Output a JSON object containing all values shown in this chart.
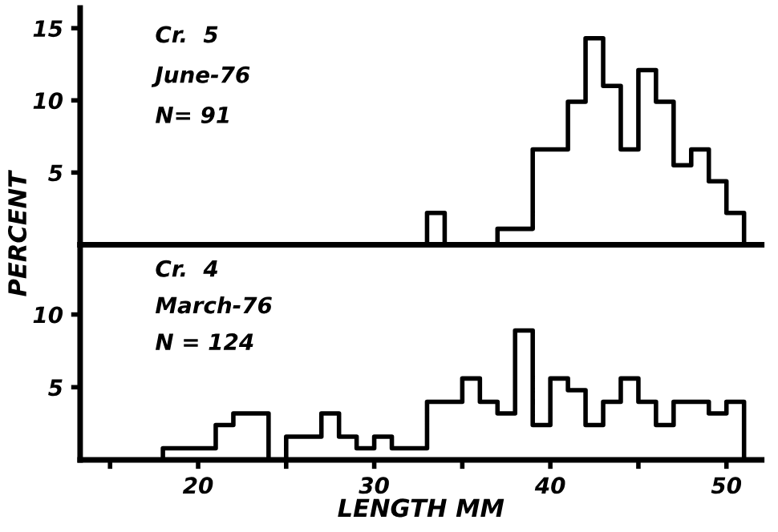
{
  "chart_data": [
    {
      "type": "histogram",
      "ylabel": "PERCENT",
      "annotations": [
        "Cr.  5",
        "June-76",
        "N= 91"
      ],
      "color": "#000000",
      "bins": [
        33,
        34,
        35,
        36,
        37,
        38,
        39,
        40,
        41,
        42,
        43,
        44,
        45,
        46,
        47,
        48,
        49,
        50,
        51
      ],
      "values": [
        2.2,
        0,
        0,
        0,
        1.1,
        1.1,
        6.6,
        6.6,
        9.9,
        14.3,
        11,
        6.6,
        12.1,
        9.9,
        5.5,
        6.6,
        4.4,
        2.2
      ],
      "xlim": [
        13.3,
        52
      ],
      "ylim": [
        0,
        16.4
      ],
      "yticks": [
        5,
        10,
        15
      ],
      "tick_labels": "y",
      "grid": false,
      "legend": false
    },
    {
      "type": "histogram",
      "xlabel": "LENGTH MM",
      "annotations": [
        "Cr.  4",
        "March-76",
        "N = 124"
      ],
      "color": "#000000",
      "bins": [
        18,
        19,
        20,
        21,
        22,
        23,
        24,
        25,
        26,
        27,
        28,
        29,
        30,
        31,
        32,
        33,
        34,
        35,
        36,
        37,
        38,
        39,
        40,
        41,
        42,
        43,
        44,
        45,
        46,
        47,
        48,
        49,
        50,
        51
      ],
      "values": [
        0.8,
        0.8,
        0.8,
        2.4,
        3.2,
        3.2,
        0,
        1.6,
        1.6,
        3.2,
        1.6,
        0.8,
        1.6,
        0.8,
        0.8,
        4.0,
        4.0,
        5.6,
        4.0,
        3.2,
        8.9,
        2.4,
        5.6,
        4.8,
        2.4,
        4.0,
        5.6,
        4.0,
        2.4,
        4.0,
        4.0,
        3.2,
        4.0
      ],
      "xlim": [
        13.3,
        52
      ],
      "ylim": [
        0,
        14.8
      ],
      "yticks": [
        5,
        10
      ],
      "xticks": [
        {
          "value": 15,
          "label": null
        },
        20,
        {
          "value": 25,
          "label": null
        },
        30,
        {
          "value": 35,
          "label": null
        },
        40,
        {
          "value": 45,
          "label": null
        },
        50
      ],
      "grid": false,
      "legend": false
    }
  ]
}
